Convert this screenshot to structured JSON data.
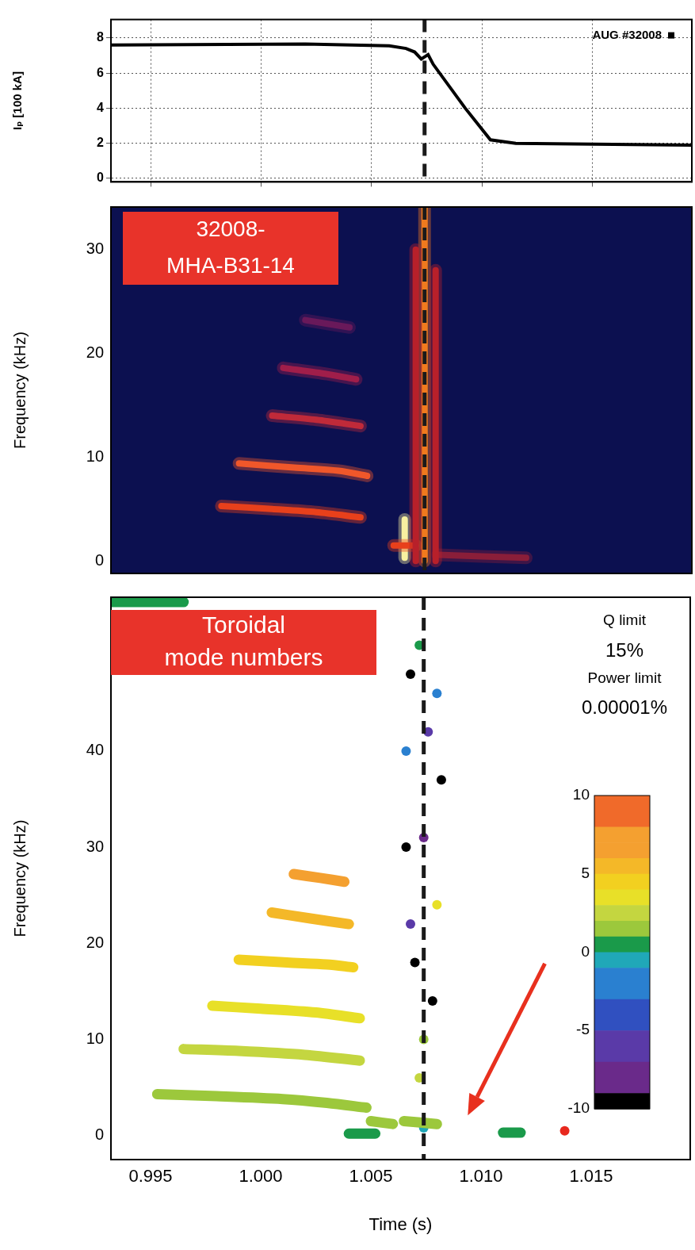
{
  "chart_data": [
    {
      "type": "line",
      "ylabel": "Iₚ [100 kA]",
      "annotation": "AUG #32008",
      "color": "#000000",
      "x": [
        0.9932,
        1.002,
        1.0058,
        1.00656,
        1.00695,
        1.00725,
        1.00756,
        1.00779,
        1.00924,
        1.01038,
        1.01153,
        1.0195
      ],
      "values": [
        7.6,
        7.65,
        7.55,
        7.4,
        7.2,
        6.8,
        7.05,
        6.5,
        4.0,
        2.2,
        2.0,
        1.9
      ],
      "xlim": [
        0.9932,
        1.0195
      ],
      "xticks": [
        {
          "value": 0.995,
          "label": "0.995"
        },
        {
          "value": 1.0,
          "label": "1.000"
        },
        {
          "value": 1.005,
          "label": "1.005"
        },
        {
          "value": 1.01,
          "label": "1.010"
        },
        {
          "value": 1.015,
          "label": "1.015"
        }
      ],
      "ylim": [
        -0.2,
        9.05
      ],
      "yticks": [
        0,
        2,
        4,
        6,
        8
      ],
      "tick_labels": "y",
      "grid": true,
      "dashed_line_x": 1.0074
    },
    {
      "type": "spectrogram",
      "title": "32008-MHA-B31-14",
      "ylabel": "Frequency (kHz)",
      "xlim": [
        0.9932,
        1.0195
      ],
      "xticks": [
        {
          "value": 0.995,
          "label": "0.995"
        },
        {
          "value": 1.0,
          "label": "1.000"
        },
        {
          "value": 1.005,
          "label": "1.005"
        },
        {
          "value": 1.01,
          "label": "1.010"
        },
        {
          "value": 1.015,
          "label": "1.015"
        }
      ],
      "ylim": [
        -1.2,
        34.1
      ],
      "yticks": [
        0,
        10,
        20,
        30
      ],
      "tick_labels": "y",
      "grid": false,
      "dashed_line_x": 1.0074,
      "series": [
        {
          "color": "#e8401c",
          "x": [
            0.9982,
            1.0005,
            1.0025,
            1.0045
          ],
          "values": [
            5.3,
            5.0,
            4.7,
            4.2
          ]
        },
        {
          "color": "#f0582a",
          "x": [
            0.999,
            1.0015,
            1.0035,
            1.0048
          ],
          "values": [
            9.4,
            9.0,
            8.7,
            8.2
          ]
        },
        {
          "color": "#c02a3a",
          "x": [
            1.0005,
            1.0025,
            1.0045
          ],
          "values": [
            14.0,
            13.6,
            13.0
          ]
        },
        {
          "color": "#a01e4a",
          "x": [
            1.001,
            1.003,
            1.0043
          ],
          "values": [
            18.6,
            18.0,
            17.5
          ]
        },
        {
          "color": "#6a1a5a",
          "x": [
            1.002,
            1.004
          ],
          "values": [
            23.2,
            22.5
          ]
        },
        {
          "color": "#b8202a",
          "x": [
            1.007,
            1.007
          ],
          "values": [
            0,
            30
          ]
        },
        {
          "color": "#b8202a",
          "x": [
            1.0079,
            1.0079
          ],
          "values": [
            0,
            28
          ]
        },
        {
          "color": "#f07a1e",
          "x": [
            1.0074,
            1.0074
          ],
          "values": [
            0,
            34.1
          ]
        },
        {
          "color": "#e8401c",
          "x": [
            1.006,
            1.007
          ],
          "values": [
            1.5,
            1.5
          ]
        },
        {
          "color": "#f8f0a0",
          "x": [
            1.0065,
            1.0065
          ],
          "values": [
            0.3,
            4.0
          ]
        },
        {
          "color": "#8a1e3a",
          "x": [
            1.008,
            1.012
          ],
          "values": [
            0.6,
            0.3
          ]
        }
      ]
    },
    {
      "type": "scatter",
      "title": "Toroidal mode numbers",
      "xlabel": "Time (s)",
      "ylabel": "Frequency (kHz)",
      "xlim": [
        0.9932,
        1.0195
      ],
      "xticks": [
        {
          "value": 0.995,
          "label": "0.995"
        },
        {
          "value": 1.0,
          "label": "1.000"
        },
        {
          "value": 1.005,
          "label": "1.005"
        },
        {
          "value": 1.01,
          "label": "1.010"
        },
        {
          "value": 1.015,
          "label": "1.015"
        }
      ],
      "ylim": [
        -2.5,
        56
      ],
      "yticks": [
        0,
        10,
        20,
        30,
        40
      ],
      "grid": false,
      "dashed_line_x": 1.0074,
      "annotations": [
        "Q limit",
        "15%",
        "Power limit",
        "0.00001%"
      ],
      "colorbar": {
        "range": [
          -10,
          10
        ],
        "ticks": [
          -10,
          -5,
          0,
          5,
          10
        ]
      },
      "arrow": {
        "from": [
          1.0129,
          17.9
        ],
        "to": [
          1.0094,
          2.1
        ]
      },
      "series": [
        {
          "mode_number": 1,
          "x": [
            0.9953,
            0.998,
            1.001,
            1.003,
            1.0048
          ],
          "values": [
            4.3,
            4.1,
            3.8,
            3.4,
            2.9
          ]
        },
        {
          "mode_number": 2,
          "x": [
            0.9965,
            0.999,
            1.002,
            1.0045
          ],
          "values": [
            9.0,
            8.8,
            8.4,
            7.8
          ]
        },
        {
          "mode_number": 3,
          "x": [
            0.9978,
            1.0,
            1.0025,
            1.0045
          ],
          "values": [
            13.5,
            13.2,
            12.8,
            12.2
          ]
        },
        {
          "mode_number": 4,
          "x": [
            0.999,
            1.0012,
            1.003,
            1.0042
          ],
          "values": [
            18.3,
            18.0,
            17.8,
            17.5
          ]
        },
        {
          "mode_number": 5,
          "x": [
            1.0005,
            1.0022,
            1.004
          ],
          "values": [
            23.2,
            22.6,
            22.0
          ]
        },
        {
          "mode_number": 6,
          "x": [
            1.0015,
            1.0027,
            1.0038
          ],
          "values": [
            27.2,
            26.8,
            26.4
          ]
        },
        {
          "mode_number": 1,
          "x": [
            1.005,
            1.006
          ],
          "values": [
            1.5,
            1.2
          ]
        },
        {
          "mode_number": 1,
          "x": [
            1.0065,
            1.008
          ],
          "values": [
            1.5,
            1.2
          ]
        },
        {
          "mode_number": 0,
          "x": [
            1.004,
            1.0052
          ],
          "values": [
            0.2,
            0.2
          ]
        },
        {
          "mode_number": 0,
          "x": [
            1.011,
            1.0118
          ],
          "values": [
            0.3,
            0.3
          ]
        },
        {
          "mode_number": 0,
          "x": [
            0.9932,
            0.9965
          ],
          "values": [
            55.5,
            55.5
          ]
        },
        {
          "mode_number": 10,
          "x": [
            1.0138
          ],
          "values": [
            0.5
          ]
        },
        {
          "mode_number": 0,
          "x": [
            1.0072
          ],
          "values": [
            51
          ]
        },
        {
          "mode_number": -10,
          "x": [
            1.0068
          ],
          "values": [
            48
          ]
        },
        {
          "mode_number": -3,
          "x": [
            1.008
          ],
          "values": [
            46
          ]
        },
        {
          "mode_number": -8,
          "x": [
            1.0074
          ],
          "values": [
            31
          ]
        },
        {
          "mode_number": -10,
          "x": [
            1.0066
          ],
          "values": [
            30
          ]
        },
        {
          "mode_number": -10,
          "x": [
            1.0082
          ],
          "values": [
            37
          ]
        },
        {
          "mode_number": -10,
          "x": [
            1.007
          ],
          "values": [
            18
          ]
        },
        {
          "mode_number": -10,
          "x": [
            1.0078
          ],
          "values": [
            14
          ]
        },
        {
          "mode_number": 1,
          "x": [
            1.0074
          ],
          "values": [
            10
          ]
        },
        {
          "mode_number": 2,
          "x": [
            1.0072
          ],
          "values": [
            6
          ]
        },
        {
          "mode_number": -7,
          "x": [
            1.0068
          ],
          "values": [
            22
          ]
        },
        {
          "mode_number": 3,
          "x": [
            1.008
          ],
          "values": [
            24
          ]
        },
        {
          "mode_number": -6,
          "x": [
            1.0076
          ],
          "values": [
            42
          ]
        },
        {
          "mode_number": -2,
          "x": [
            1.0066
          ],
          "values": [
            40
          ]
        },
        {
          "mode_number": -1,
          "x": [
            1.0074
          ],
          "values": [
            0.8
          ]
        }
      ]
    }
  ]
}
